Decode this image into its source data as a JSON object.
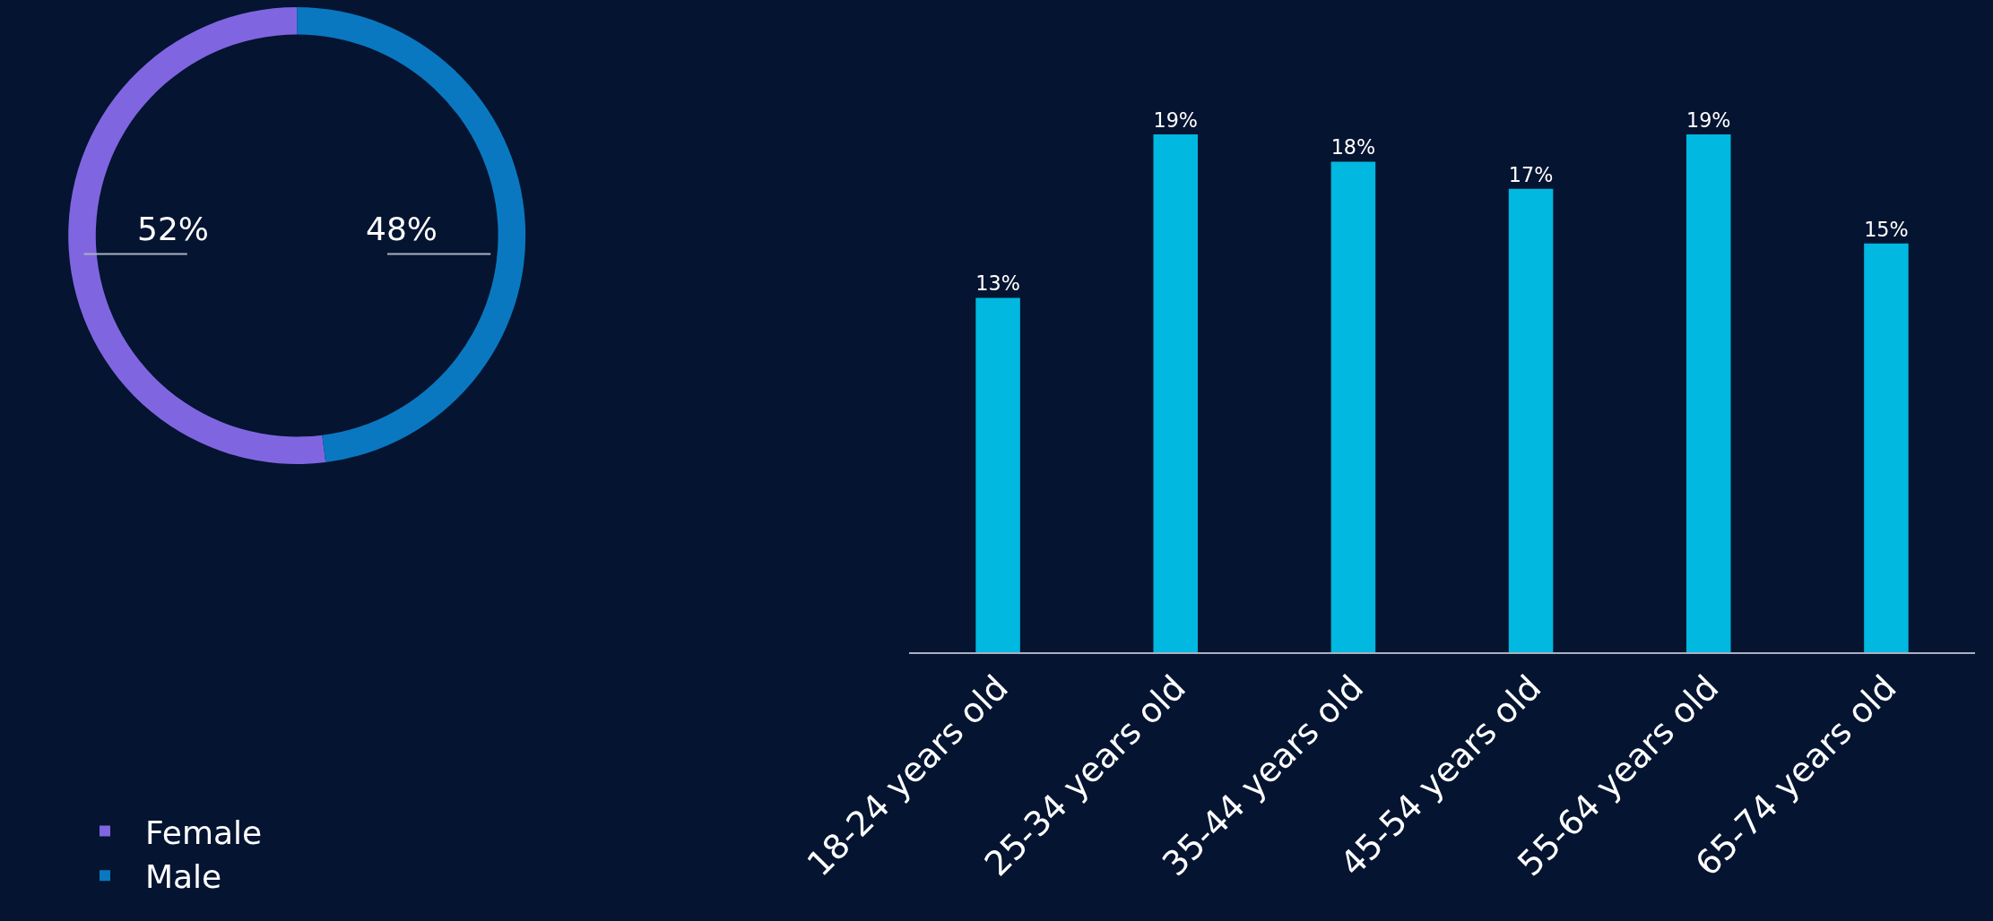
{
  "chart_data": [
    {
      "type": "donut",
      "categories": [
        "Female",
        "Male"
      ],
      "values": [
        52,
        48
      ],
      "colors": [
        "#7f66e0",
        "#0a78c0"
      ],
      "value_labels": [
        "52%",
        "48%"
      ],
      "legend": "bottom left"
    },
    {
      "type": "bar",
      "categories": [
        "18-24 years old",
        "25-34 years old",
        "35-44 years old",
        "45-54 years old",
        "55-64 years old",
        "65-74 years old"
      ],
      "values": [
        13,
        19,
        18,
        17,
        19,
        15
      ],
      "value_labels": [
        "13%",
        "19%",
        "18%",
        "17%",
        "19%",
        "15%"
      ],
      "color": "#00b8e0",
      "data_labels": true,
      "grid": false
    }
  ]
}
